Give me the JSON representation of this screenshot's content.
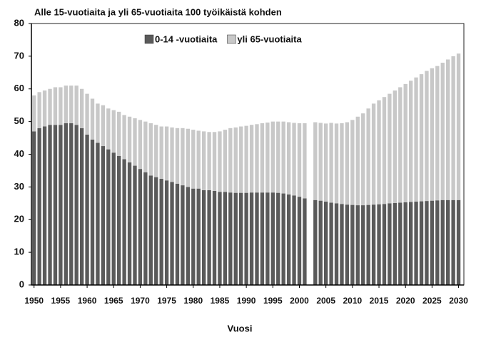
{
  "chart_data": {
    "type": "stacked_bar",
    "title": "Alle 15-vuotiaita ja yli 65-vuotiaita 100 työikäistä kohden",
    "x_label": "Vuosi",
    "x": [
      1950,
      1951,
      1952,
      1953,
      1954,
      1955,
      1956,
      1957,
      1958,
      1959,
      1960,
      1961,
      1962,
      1963,
      1964,
      1965,
      1966,
      1967,
      1968,
      1969,
      1970,
      1971,
      1972,
      1973,
      1974,
      1975,
      1976,
      1977,
      1978,
      1979,
      1980,
      1981,
      1982,
      1983,
      1984,
      1985,
      1986,
      1987,
      1988,
      1989,
      1990,
      1991,
      1992,
      1993,
      1994,
      1995,
      1996,
      1997,
      1998,
      1999,
      2000,
      2001,
      2003,
      2004,
      2005,
      2006,
      2007,
      2008,
      2009,
      2010,
      2011,
      2012,
      2013,
      2014,
      2015,
      2016,
      2017,
      2018,
      2019,
      2020,
      2021,
      2022,
      2023,
      2024,
      2025,
      2026,
      2027,
      2028,
      2029,
      2030
    ],
    "series": [
      {
        "name": "0-14 -vuotiaita",
        "color": "#5a5a5a",
        "values": [
          47,
          48,
          48.5,
          49,
          49,
          49,
          49.5,
          49.5,
          49,
          48,
          46,
          44.5,
          43.5,
          42.5,
          41.5,
          40.5,
          39.5,
          38.5,
          37.5,
          36.5,
          35.5,
          34.5,
          33.5,
          33,
          32.5,
          32,
          31.5,
          31,
          30.5,
          30,
          29.5,
          29.5,
          29,
          29,
          28.8,
          28.5,
          28.5,
          28.3,
          28.2,
          28.2,
          28.2,
          28.3,
          28.3,
          28.3,
          28.3,
          28.3,
          28.2,
          28,
          27.7,
          27.4,
          27,
          26.5,
          26,
          25.8,
          25.5,
          25.2,
          25,
          24.8,
          24.6,
          24.5,
          24.4,
          24.4,
          24.5,
          24.6,
          24.7,
          24.8,
          25,
          25.1,
          25.2,
          25.3,
          25.4,
          25.5,
          25.6,
          25.7,
          25.8,
          25.9,
          26,
          26,
          26,
          26
        ]
      },
      {
        "name": "yli 65-vuotiaita",
        "color": "#c8c8c8",
        "values": [
          11,
          11,
          11,
          11,
          11.5,
          11.5,
          11.5,
          11.5,
          12,
          12,
          12.5,
          12.5,
          12,
          12.5,
          12.5,
          13,
          13.5,
          13.5,
          14,
          14.5,
          15,
          15.5,
          16,
          16,
          16,
          16.5,
          16.7,
          17,
          17.5,
          17.8,
          18,
          17.7,
          18,
          17.8,
          18,
          18.5,
          19,
          19.7,
          20,
          20.3,
          20.5,
          20.7,
          20.9,
          21.2,
          21.4,
          21.7,
          21.8,
          22,
          22.1,
          22.2,
          22.5,
          23,
          23.8,
          23.8,
          23.9,
          24.4,
          24.4,
          24.7,
          25.2,
          26,
          27.1,
          28.1,
          29.5,
          30.9,
          31.8,
          32.7,
          33.5,
          34.4,
          35.3,
          36.2,
          37.1,
          38,
          38.9,
          39.8,
          40.5,
          41.1,
          42,
          43,
          44,
          44.8
        ]
      }
    ],
    "xlim": [
      1949.5,
      2031
    ],
    "xticks": [
      1950,
      1955,
      1960,
      1965,
      1970,
      1975,
      1980,
      1985,
      1990,
      1995,
      2000,
      2005,
      2010,
      2015,
      2020,
      2025,
      2030
    ],
    "ylim": [
      0,
      80
    ],
    "yticks": [
      0,
      10,
      20,
      30,
      40,
      50,
      60,
      70,
      80
    ],
    "grid": false,
    "legend": "top"
  }
}
